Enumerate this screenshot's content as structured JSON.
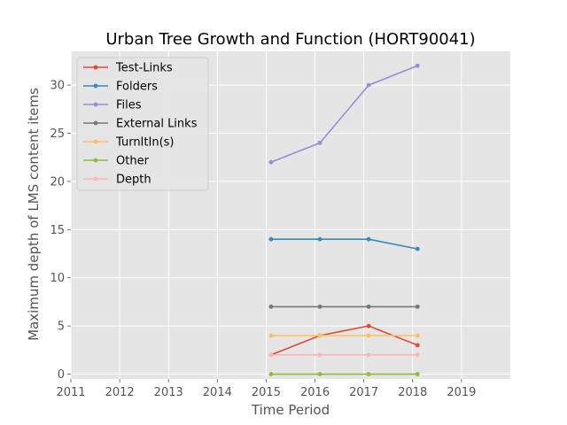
{
  "chart_data": {
    "type": "line",
    "title": "Urban Tree Growth and Function (HORT90041)",
    "xlabel": "Time Period",
    "ylabel": "Maximum depth of LMS content items",
    "xlim": [
      2011,
      2020
    ],
    "ylim": [
      -0.5,
      33.5
    ],
    "xticks": [
      "2011",
      "2012",
      "2013",
      "2014",
      "2015",
      "2016",
      "2017",
      "2018",
      "2019"
    ],
    "yticks": [
      "0",
      "5",
      "10",
      "15",
      "20",
      "25",
      "30"
    ],
    "grid": true,
    "legend_position": "top-left",
    "x": [
      2015.1,
      2016.1,
      2017.1,
      2018.1
    ],
    "series": [
      {
        "name": "Test-Links",
        "color": "#e24a33",
        "values": [
          2,
          4,
          5,
          3
        ]
      },
      {
        "name": "Folders",
        "color": "#348abd",
        "values": [
          14,
          14,
          14,
          13
        ]
      },
      {
        "name": "Files",
        "color": "#988ed5",
        "values": [
          22,
          24,
          30,
          32
        ]
      },
      {
        "name": "External Links",
        "color": "#777777",
        "values": [
          7,
          7,
          7,
          7
        ]
      },
      {
        "name": "TurnItIn(s)",
        "color": "#fbc15e",
        "values": [
          4,
          4,
          4,
          4
        ]
      },
      {
        "name": "Other",
        "color": "#8eba42",
        "values": [
          0,
          0,
          0,
          0
        ]
      },
      {
        "name": "Depth",
        "color": "#ffb5b8",
        "values": [
          2,
          2,
          2,
          2
        ]
      }
    ]
  }
}
